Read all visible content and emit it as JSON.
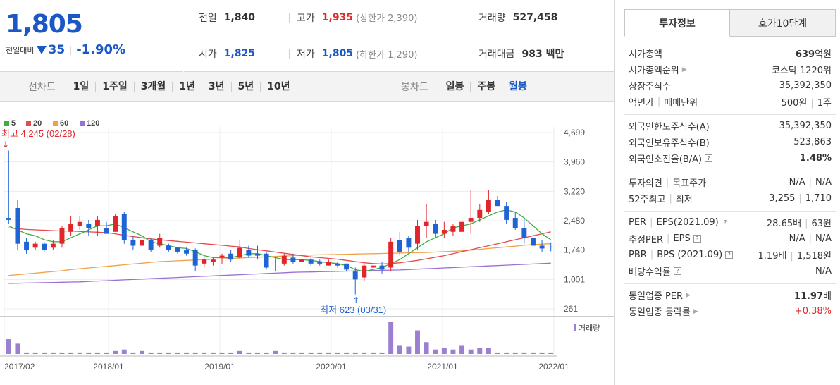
{
  "price": {
    "current": "1,805",
    "change_label": "전일대비",
    "change_value": "35",
    "change_pct": "-1.90%"
  },
  "stats": {
    "prev_close_label": "전일",
    "prev_close": "1,840",
    "high_label": "고가",
    "high": "1,935",
    "upper_limit_label": "(상한가 2,390)",
    "volume_label": "거래량",
    "volume": "527,458",
    "open_label": "시가",
    "open": "1,825",
    "low_label": "저가",
    "low": "1,805",
    "lower_limit_label": "(하한가 1,290)",
    "amount_label": "거래대금",
    "amount": "983 백만"
  },
  "nav": {
    "line_label": "선차트",
    "line_items": [
      "1일",
      "1주일",
      "3개월",
      "1년",
      "3년",
      "5년",
      "10년"
    ],
    "candle_label": "봉차트",
    "candle_items": [
      "일봉",
      "주봉",
      "월봉"
    ],
    "candle_selected": "월봉"
  },
  "chart_data": {
    "type": "candlestick",
    "legend": [
      {
        "name": "5",
        "color": "#3fae3f"
      },
      {
        "name": "20",
        "color": "#e54b4b"
      },
      {
        "name": "60",
        "color": "#f0a24a"
      },
      {
        "name": "120",
        "color": "#9b6fd6"
      }
    ],
    "y_ticks": [
      "4,699",
      "3,960",
      "3,220",
      "2,480",
      "1,740",
      "1,001",
      "261"
    ],
    "ylim": [
      261,
      4699
    ],
    "x_ticks": [
      "2017/02",
      "2018/01",
      "2019/01",
      "2020/01",
      "2021/01",
      "2022/01"
    ],
    "max_annotation": "최고 4,245 (02/28)",
    "min_annotation": "최저 623 (03/31)",
    "volume_label": "거래량",
    "candles": [
      [
        4245,
        2400,
        2550,
        2500
      ],
      [
        3000,
        1750,
        2800,
        1900
      ],
      [
        2050,
        1650,
        1950,
        1750
      ],
      [
        1950,
        1750,
        1800,
        1900
      ],
      [
        1950,
        1700,
        1900,
        1750
      ],
      [
        2000,
        1750,
        1800,
        1900
      ],
      [
        2350,
        1800,
        1900,
        2300
      ],
      [
        2600,
        2100,
        2200,
        2400
      ],
      [
        2600,
        2250,
        2350,
        2450
      ],
      [
        2500,
        2100,
        2400,
        2300
      ],
      [
        2600,
        2100,
        2350,
        2500
      ],
      [
        2450,
        2150,
        2300,
        2150
      ],
      [
        2650,
        2200,
        2200,
        2600
      ],
      [
        2700,
        1900,
        2650,
        2000
      ],
      [
        2100,
        1750,
        2000,
        1850
      ],
      [
        2050,
        1800,
        1850,
        2000
      ],
      [
        2050,
        1700,
        2000,
        1750
      ],
      [
        2150,
        1800,
        1850,
        2050
      ],
      [
        1900,
        1700,
        1850,
        1750
      ],
      [
        1800,
        1650,
        1800,
        1700
      ],
      [
        1800,
        1600,
        1750,
        1650
      ],
      [
        1780,
        1200,
        1750,
        1350
      ],
      [
        1550,
        1300,
        1400,
        1500
      ],
      [
        1550,
        1350,
        1450,
        1500
      ],
      [
        1650,
        1400,
        1550,
        1600
      ],
      [
        1750,
        1450,
        1650,
        1500
      ],
      [
        2000,
        1500,
        1550,
        1800
      ],
      [
        1850,
        1550,
        1750,
        1600
      ],
      [
        1850,
        1500,
        1650,
        1600
      ],
      [
        1700,
        1250,
        1650,
        1300
      ],
      [
        1550,
        1200,
        1450,
        1450
      ],
      [
        1650,
        1350,
        1400,
        1600
      ],
      [
        1650,
        1400,
        1550,
        1450
      ],
      [
        1800,
        1350,
        1450,
        1500
      ],
      [
        1550,
        1350,
        1500,
        1400
      ],
      [
        1500,
        1350,
        1450,
        1400
      ],
      [
        1500,
        1350,
        1350,
        1450
      ],
      [
        1450,
        1300,
        1400,
        1350
      ],
      [
        1400,
        1200,
        1400,
        1250
      ],
      [
        1300,
        623,
        1200,
        1000
      ],
      [
        1400,
        950,
        1050,
        1350
      ],
      [
        1400,
        1250,
        1300,
        1350
      ],
      [
        1450,
        1150,
        1350,
        1250
      ],
      [
        2050,
        1200,
        1300,
        1950
      ],
      [
        2200,
        1600,
        2000,
        1700
      ],
      [
        2100,
        1700,
        2050,
        1800
      ],
      [
        2500,
        1750,
        1900,
        2350
      ],
      [
        2900,
        2050,
        2350,
        2450
      ],
      [
        2500,
        2050,
        2400,
        2150
      ],
      [
        2450,
        2050,
        2150,
        2250
      ],
      [
        2400,
        2100,
        2200,
        2350
      ],
      [
        2500,
        2100,
        2200,
        2450
      ],
      [
        3250,
        2150,
        2450,
        2550
      ],
      [
        2900,
        2450,
        2550,
        2750
      ],
      [
        3255,
        2650,
        2700,
        3000
      ],
      [
        3100,
        2850,
        3000,
        2850
      ],
      [
        2950,
        2400,
        2850,
        2500
      ],
      [
        2700,
        2250,
        2550,
        2300
      ],
      [
        2550,
        1900,
        2300,
        2050
      ],
      [
        2500,
        1800,
        2050,
        1850
      ],
      [
        2000,
        1700,
        1850,
        1780
      ],
      [
        1935,
        1710,
        1825,
        1805
      ]
    ],
    "ma5": [
      2350,
      2250,
      2150,
      2100,
      2000,
      1950,
      1950,
      2050,
      2150,
      2250,
      2350,
      2350,
      2400,
      2300,
      2200,
      2100,
      1950,
      1900,
      1850,
      1800,
      1780,
      1700,
      1600,
      1550,
      1550,
      1550,
      1600,
      1650,
      1650,
      1600,
      1550,
      1500,
      1500,
      1500,
      1480,
      1450,
      1420,
      1400,
      1350,
      1250,
      1200,
      1250,
      1300,
      1400,
      1500,
      1650,
      1800,
      1950,
      2050,
      2150,
      2300,
      2350,
      2400,
      2500,
      2600,
      2700,
      2750,
      2700,
      2550,
      2350,
      2150,
      2000
    ],
    "ma20": [
      2300,
      2280,
      2260,
      2250,
      2240,
      2230,
      2220,
      2220,
      2210,
      2200,
      2190,
      2180,
      2150,
      2110,
      2080,
      2050,
      2020,
      2000,
      1980,
      1960,
      1940,
      1920,
      1900,
      1880,
      1860,
      1840,
      1820,
      1780,
      1750,
      1720,
      1690,
      1660,
      1630,
      1600,
      1570,
      1550,
      1530,
      1510,
      1480,
      1450,
      1420,
      1400,
      1390,
      1400,
      1420,
      1450,
      1480,
      1520,
      1560,
      1600,
      1650,
      1700,
      1750,
      1800,
      1850,
      1900,
      1950,
      2000,
      2050,
      2100,
      2150,
      2200
    ],
    "ma60": [
      1100,
      1120,
      1140,
      1160,
      1180,
      1200,
      1220,
      1250,
      1270,
      1290,
      1310,
      1330,
      1350,
      1370,
      1390,
      1410,
      1430,
      1450,
      1460,
      1470,
      1480,
      1490,
      1500,
      1510,
      1520,
      1530,
      1540,
      1550,
      1560,
      1570,
      1580,
      1590,
      1600,
      1610,
      1615,
      1620,
      1625,
      1630,
      1635,
      1640,
      1645,
      1650,
      1655,
      1660,
      1665,
      1670,
      1675,
      1680,
      1690,
      1700,
      1710,
      1720,
      1740,
      1760,
      1780,
      1800,
      1820,
      1840,
      1860,
      1880,
      1890,
      1900
    ],
    "ma120": [
      900,
      905,
      910,
      915,
      920,
      925,
      930,
      935,
      940,
      950,
      960,
      970,
      980,
      990,
      1000,
      1010,
      1020,
      1030,
      1040,
      1050,
      1060,
      1070,
      1080,
      1090,
      1100,
      1110,
      1120,
      1130,
      1140,
      1150,
      1160,
      1170,
      1180,
      1185,
      1190,
      1195,
      1200,
      1205,
      1210,
      1215,
      1220,
      1225,
      1230,
      1235,
      1240,
      1250,
      1260,
      1270,
      1280,
      1290,
      1300,
      1310,
      1320,
      1330,
      1340,
      1350,
      1360,
      1370,
      1380,
      1390,
      1400,
      1410
    ],
    "volume": [
      10,
      7,
      1,
      1,
      1,
      1,
      1,
      1,
      1,
      1,
      1,
      1,
      2,
      3,
      1,
      2,
      1,
      1,
      1,
      1,
      1,
      1,
      1,
      1,
      1,
      1,
      2,
      1,
      1,
      1,
      2,
      1,
      1,
      1,
      1,
      1,
      1,
      1,
      1,
      1,
      1,
      1,
      1,
      22,
      6,
      5,
      16,
      8,
      3,
      4,
      3,
      6,
      3,
      4,
      4,
      1,
      1,
      1,
      1,
      1,
      1,
      1
    ]
  },
  "tabs": {
    "invest": "투자정보",
    "quote": "호가10단계"
  },
  "info": {
    "market_cap_label": "시가총액",
    "market_cap_num": "639",
    "market_cap_unit": "억원",
    "rank_label": "시가총액순위",
    "rank_value": "코스닥 1220위",
    "shares_label": "상장주식수",
    "shares_value": "35,392,350",
    "par_label": "액면가",
    "unit_label": "매매단위",
    "par_value": "500원",
    "unit_value": "1주",
    "foreign_limit_label": "외국인한도주식수(A)",
    "foreign_limit_value": "35,392,350",
    "foreign_hold_label": "외국인보유주식수(B)",
    "foreign_hold_value": "523,863",
    "foreign_ratio_label": "외국인소진율(B/A)",
    "foreign_ratio_value": "1.48%",
    "opinion_label": "투자의견",
    "target_label": "목표주가",
    "opinion_value": "N/A",
    "target_value": "N/A",
    "w52_high_label": "52주최고",
    "w52_low_label": "최저",
    "w52_high": "3,255",
    "w52_low": "1,710",
    "per_label": "PER",
    "eps_label": "EPS(2021.09)",
    "per_value": "28.65배",
    "eps_value": "63원",
    "est_per_label": "추정PER",
    "est_eps_label": "EPS",
    "est_per_value": "N/A",
    "est_eps_value": "N/A",
    "pbr_label": "PBR",
    "bps_label": "BPS (2021.09)",
    "pbr_value": "1.19배",
    "bps_value": "1,518원",
    "div_label": "배당수익률",
    "div_value": "N/A",
    "ind_per_label": "동일업종 PER",
    "ind_per_num": "11.97",
    "ind_per_unit": "배",
    "ind_rate_label": "동일업종 등락률",
    "ind_rate_value": "+0.38%"
  }
}
